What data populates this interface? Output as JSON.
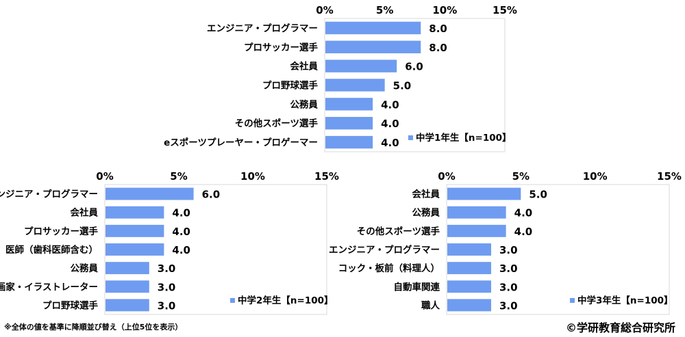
{
  "chart_data": [
    {
      "type": "bar",
      "orientation": "horizontal",
      "categories": [
        "エンジニア・プログラマー",
        "プロサッカー選手",
        "会社員",
        "プロ野球選手",
        "公務員",
        "その他スポーツ選手",
        "eスポーツプレーヤー・プロゲーマー"
      ],
      "series": [
        {
          "name": "中学1年生【n=100】",
          "values": [
            8.0,
            8.0,
            6.0,
            5.0,
            4.0,
            4.0,
            4.0
          ]
        }
      ],
      "xlim": [
        0,
        15
      ],
      "ticks": [
        "0%",
        "5%",
        "10%",
        "15%"
      ],
      "tick_values": [
        0,
        5,
        10,
        15
      ],
      "grid": false,
      "legend_position": "bottom-right",
      "color": "#6f9cf0"
    },
    {
      "type": "bar",
      "orientation": "horizontal",
      "categories": [
        "エンジニア・プログラマー",
        "会社員",
        "プロサッカー選手",
        "医師（歯科医師含む）",
        "公務員",
        "漫画家・イラストレーター",
        "プロ野球選手"
      ],
      "series": [
        {
          "name": "中学2年生【n=100】",
          "values": [
            6.0,
            4.0,
            4.0,
            4.0,
            3.0,
            3.0,
            3.0
          ]
        }
      ],
      "xlim": [
        0,
        15
      ],
      "ticks": [
        "0%",
        "5%",
        "10%",
        "15%"
      ],
      "tick_values": [
        0,
        5,
        10,
        15
      ],
      "grid": false,
      "legend_position": "bottom-right",
      "color": "#6f9cf0"
    },
    {
      "type": "bar",
      "orientation": "horizontal",
      "categories": [
        "会社員",
        "公務員",
        "その他スポーツ選手",
        "エンジニア・プログラマー",
        "コック・板前（料理人）",
        "自動車関連",
        "職人"
      ],
      "series": [
        {
          "name": "中学3年生【n=100】",
          "values": [
            5.0,
            4.0,
            4.0,
            3.0,
            3.0,
            3.0,
            3.0
          ]
        }
      ],
      "xlim": [
        0,
        15
      ],
      "ticks": [
        "0%",
        "5%",
        "10%",
        "15%"
      ],
      "tick_values": [
        0,
        5,
        10,
        15
      ],
      "grid": false,
      "legend_position": "bottom-right",
      "color": "#6f9cf0"
    }
  ],
  "footer": {
    "note": "※全体の値を基準に降順並び替え（上位5位を表示）",
    "copyright": "©学研教育総合研究所"
  }
}
